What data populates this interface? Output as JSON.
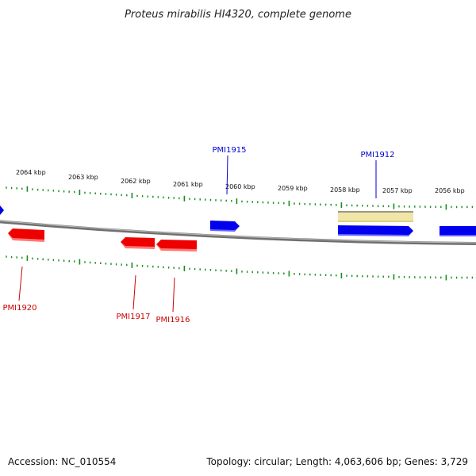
{
  "title": "Proteus mirabilis HI4320, complete genome",
  "footer": {
    "accession": "Accession: NC_010554",
    "topology": "Topology: circular; Length: 4,063,606 bp; Genes: 3,729"
  },
  "colors": {
    "forward_gene": "#0000ee",
    "reverse_gene": "#ee0000",
    "feature_highlight": "#f0e6a8",
    "tick": "#1a8a1a",
    "backbone": "#808080"
  },
  "scale_labels": [
    "2064 kbp",
    "2063 kbp",
    "2062 kbp",
    "2061 kbp",
    "2060 kbp",
    "2059 kbp",
    "2058 kbp",
    "2057 kbp",
    "2056 kbp"
  ],
  "gene_labels": {
    "forward": [
      "PMI1915",
      "PMI1912"
    ],
    "reverse": [
      "PMI1920",
      "PMI1917",
      "PMI1916"
    ]
  }
}
